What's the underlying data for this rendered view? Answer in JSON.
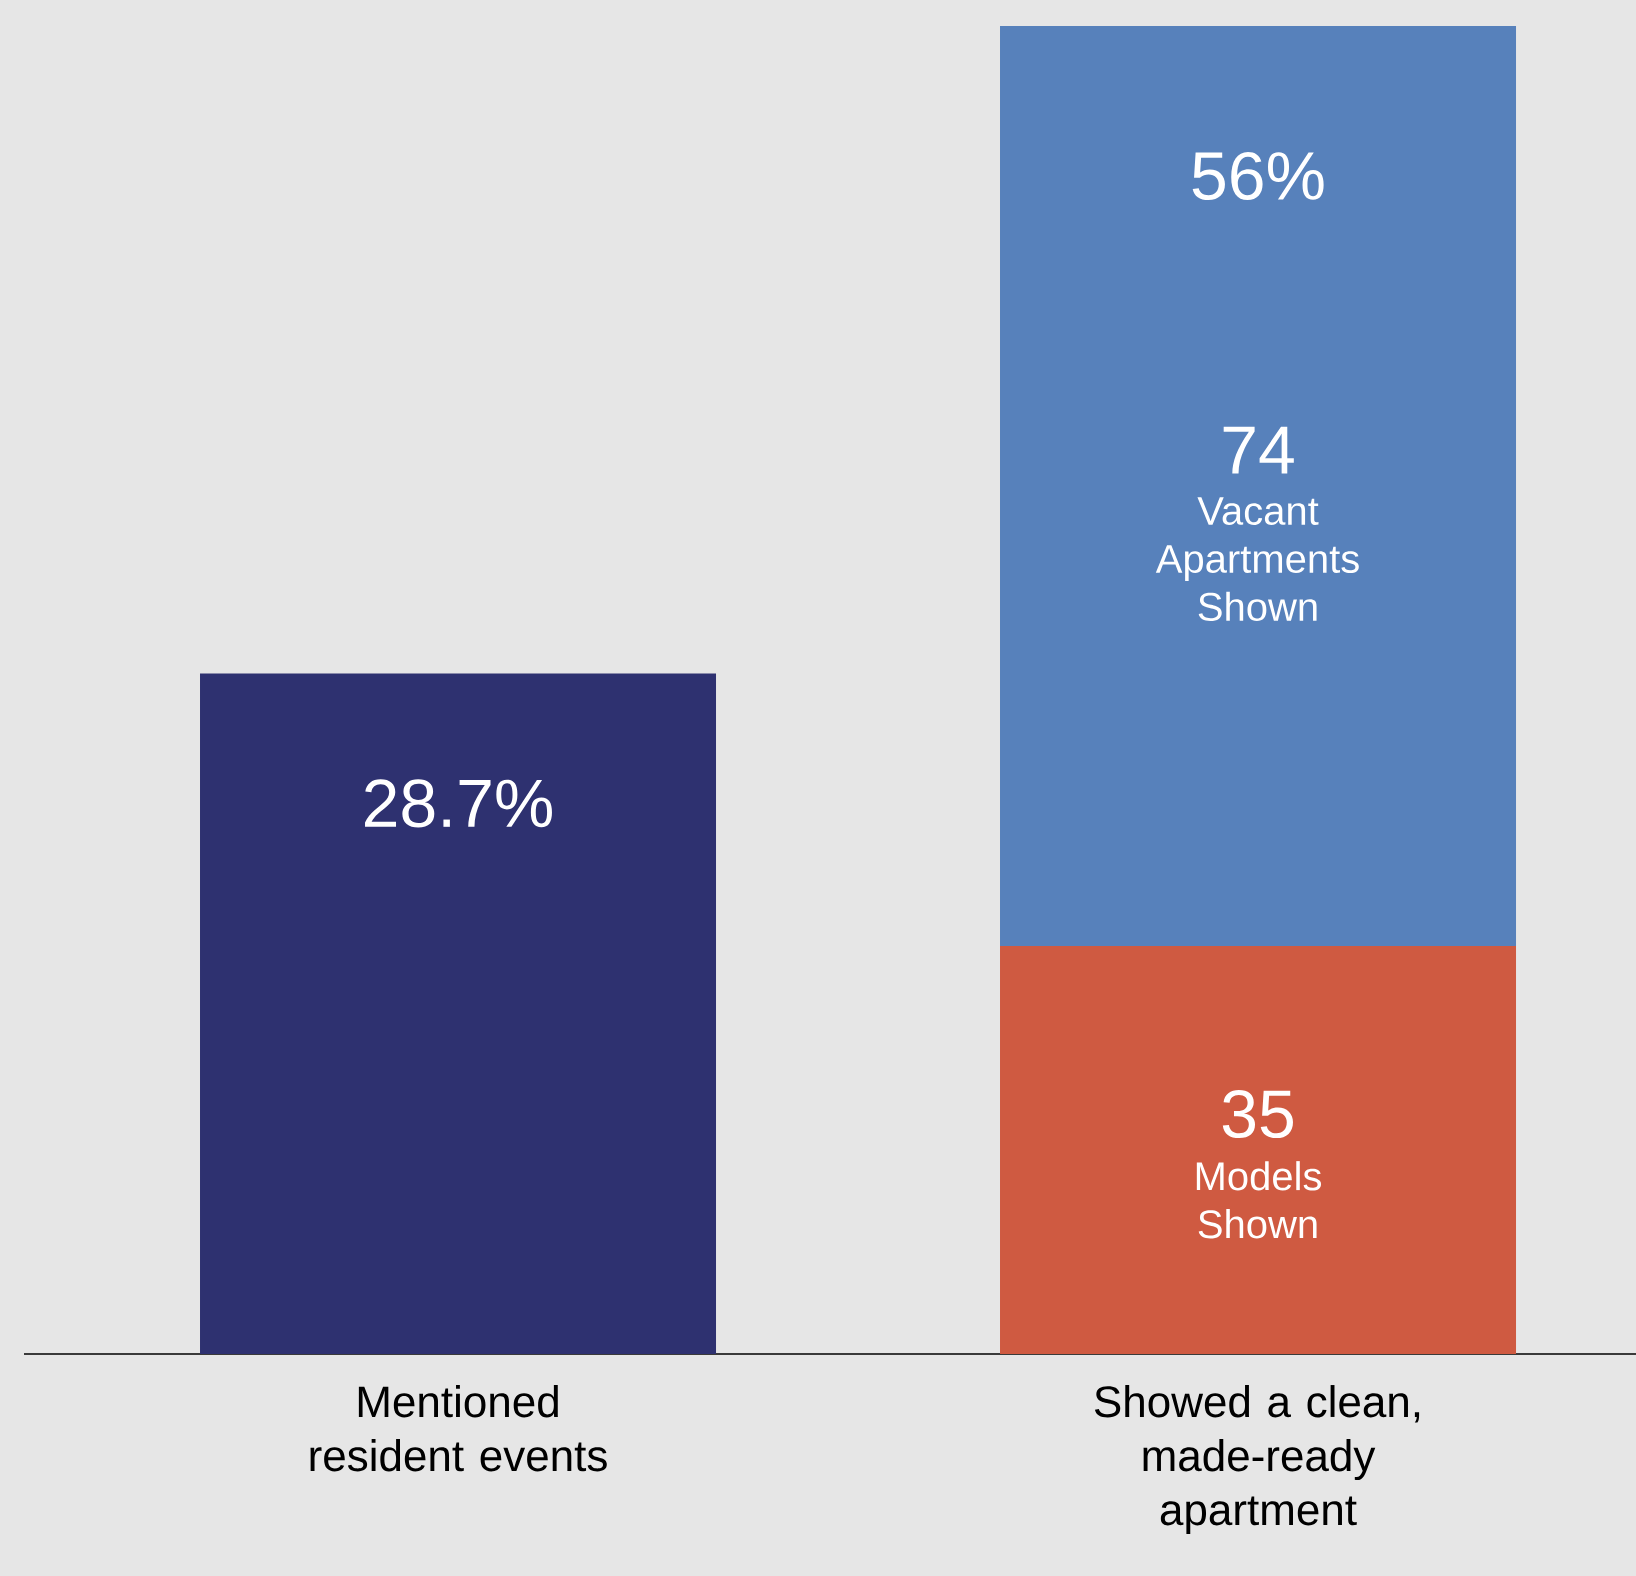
{
  "chart_data": {
    "type": "bar",
    "stacked": true,
    "categories": [
      "Mentioned resident events",
      "Showed a clean, made-ready apartment"
    ],
    "series": [
      {
        "color": "#2e3170",
        "values": [
          28.7,
          null
        ],
        "value_labels": [
          "28.7%",
          null
        ]
      },
      {
        "name": "Models Shown",
        "color": "#cf5a41",
        "values": [
          null,
          17.2
        ]
      },
      {
        "name": "Vacant Apartments Shown",
        "color": "#5781bb",
        "values": [
          null,
          38.8
        ]
      }
    ],
    "totals": [
      null,
      "56%"
    ],
    "annotations": [
      "35",
      "74"
    ]
  }
}
